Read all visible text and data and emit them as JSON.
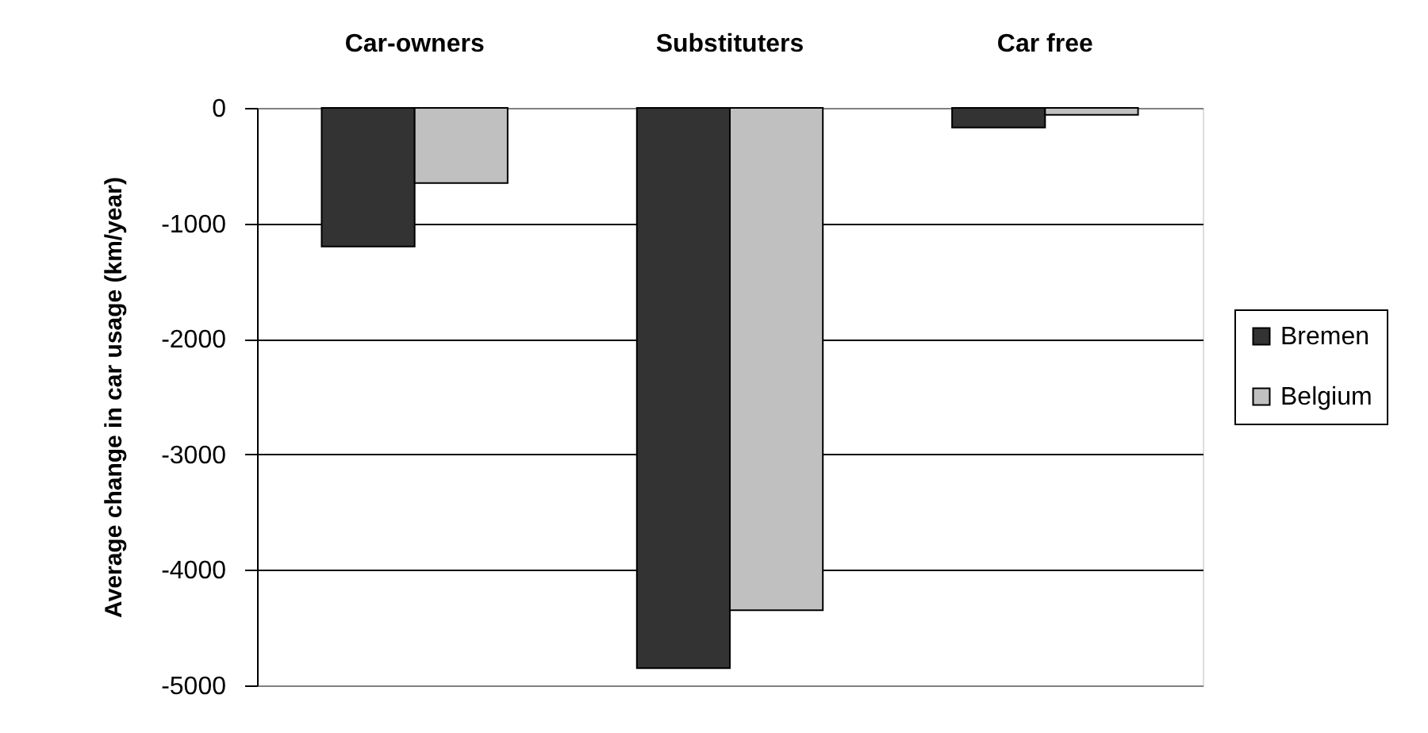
{
  "chart_data": {
    "type": "bar",
    "categories": [
      "Car-owners",
      "Substituters",
      "Car free"
    ],
    "series": [
      {
        "name": "Bremen",
        "color": "#333333",
        "values": [
          -1200,
          -4850,
          -170
        ]
      },
      {
        "name": "Belgium",
        "color": "#c0c0c0",
        "values": [
          -650,
          -4350,
          -60
        ]
      }
    ],
    "ylabel": "Average change in car usage (km/year)",
    "ylim": [
      -5000,
      0
    ],
    "yticks": [
      -5000,
      -4000,
      -3000,
      -2000,
      -1000,
      0
    ],
    "grid": "y",
    "legend": "right"
  }
}
